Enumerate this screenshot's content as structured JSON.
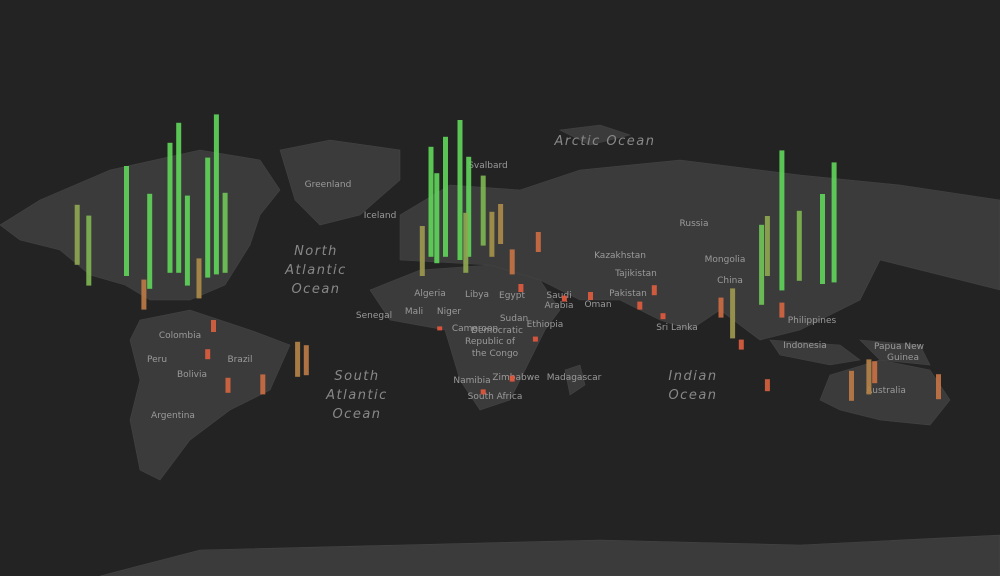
{
  "oceans": [
    [
      "Arctic Ocean"
    ],
    [
      "North",
      "Atlantic",
      "Ocean"
    ],
    [
      "South",
      "Atlantic",
      "Ocean"
    ],
    [
      "Indian",
      "Ocean"
    ]
  ],
  "places": [
    "Greenland",
    "Svalbard",
    "Iceland",
    "Russia",
    "Kazakhstan",
    "Mongolia",
    "Tajikistan",
    "China",
    "Pakistan",
    "Algeria",
    "Libya",
    "Egypt",
    "Saudi",
    "Arabia",
    "Oman",
    "Mali",
    "Niger",
    "Senegal",
    "Cameroon",
    "Democratic",
    "Republic of",
    "the Congo",
    "Sudan",
    "Ethiopia",
    "Namibia",
    "Zimbabwe",
    "Madagascar",
    "South Africa",
    "Colombia",
    "Brazil",
    "Bolivia",
    "Peru",
    "Argentina",
    "Sri Lanka",
    "Philippines",
    "Indonesia",
    "Papua New",
    "Guinea",
    "Australia"
  ],
  "bars": [
    {
      "lon": -122,
      "lat": 47,
      "value": 60
    },
    {
      "lon": -118,
      "lat": 34,
      "value": 70
    },
    {
      "lon": -105,
      "lat": 40,
      "value": 110
    },
    {
      "lon": -97,
      "lat": 32,
      "value": 95
    },
    {
      "lon": -90,
      "lat": 42,
      "value": 130
    },
    {
      "lon": -87,
      "lat": 42,
      "value": 150
    },
    {
      "lon": -84,
      "lat": 34,
      "value": 90
    },
    {
      "lon": -80,
      "lat": 26,
      "value": 40
    },
    {
      "lon": -77,
      "lat": 39,
      "value": 120
    },
    {
      "lon": -74,
      "lat": 41,
      "value": 160
    },
    {
      "lon": -71,
      "lat": 42,
      "value": 80
    },
    {
      "lon": -99,
      "lat": 19,
      "value": 30
    },
    {
      "lon": -75,
      "lat": 5,
      "value": 12
    },
    {
      "lon": -46,
      "lat": -23,
      "value": 35
    },
    {
      "lon": -43,
      "lat": -22,
      "value": 30
    },
    {
      "lon": -58,
      "lat": -34,
      "value": 20
    },
    {
      "lon": -70,
      "lat": -33,
      "value": 15
    },
    {
      "lon": -77,
      "lat": -12,
      "value": 10
    },
    {
      "lon": -3,
      "lat": 40,
      "value": 50
    },
    {
      "lon": 2,
      "lat": 48,
      "value": 90
    },
    {
      "lon": 0,
      "lat": 52,
      "value": 110
    },
    {
      "lon": 5,
      "lat": 52,
      "value": 120
    },
    {
      "lon": 10,
      "lat": 50,
      "value": 140
    },
    {
      "lon": 13,
      "lat": 52,
      "value": 100
    },
    {
      "lon": 18,
      "lat": 59,
      "value": 70
    },
    {
      "lon": 12,
      "lat": 42,
      "value": 60
    },
    {
      "lon": 21,
      "lat": 52,
      "value": 45
    },
    {
      "lon": 24,
      "lat": 60,
      "value": 40
    },
    {
      "lon": 37,
      "lat": 55,
      "value": 20
    },
    {
      "lon": 28,
      "lat": 41,
      "value": 25
    },
    {
      "lon": 31,
      "lat": 30,
      "value": 8
    },
    {
      "lon": 46,
      "lat": 24,
      "value": 6
    },
    {
      "lon": 55,
      "lat": 25,
      "value": 8
    },
    {
      "lon": 77,
      "lat": 28,
      "value": 10
    },
    {
      "lon": 72,
      "lat": 19,
      "value": 8
    },
    {
      "lon": 80,
      "lat": 13,
      "value": 6
    },
    {
      "lon": 3,
      "lat": 6,
      "value": 4
    },
    {
      "lon": 36,
      "lat": -1,
      "value": 5
    },
    {
      "lon": 28,
      "lat": -26,
      "value": 6
    },
    {
      "lon": 18,
      "lat": -34,
      "value": 5
    },
    {
      "lon": 116,
      "lat": 40,
      "value": 60
    },
    {
      "lon": 121,
      "lat": 31,
      "value": 140
    },
    {
      "lon": 114,
      "lat": 22,
      "value": 80
    },
    {
      "lon": 127,
      "lat": 37,
      "value": 70
    },
    {
      "lon": 135,
      "lat": 35,
      "value": 90
    },
    {
      "lon": 139,
      "lat": 36,
      "value": 120
    },
    {
      "lon": 104,
      "lat": 1,
      "value": 50
    },
    {
      "lon": 100,
      "lat": 14,
      "value": 20
    },
    {
      "lon": 121,
      "lat": 14,
      "value": 15
    },
    {
      "lon": 107,
      "lat": -6,
      "value": 10
    },
    {
      "lon": 151,
      "lat": -34,
      "value": 35
    },
    {
      "lon": 145,
      "lat": -38,
      "value": 30
    },
    {
      "lon": 153,
      "lat": -27,
      "value": 22
    },
    {
      "lon": 116,
      "lat": -32,
      "value": 12
    },
    {
      "lon": 175,
      "lat": -37,
      "value": 25
    }
  ]
}
